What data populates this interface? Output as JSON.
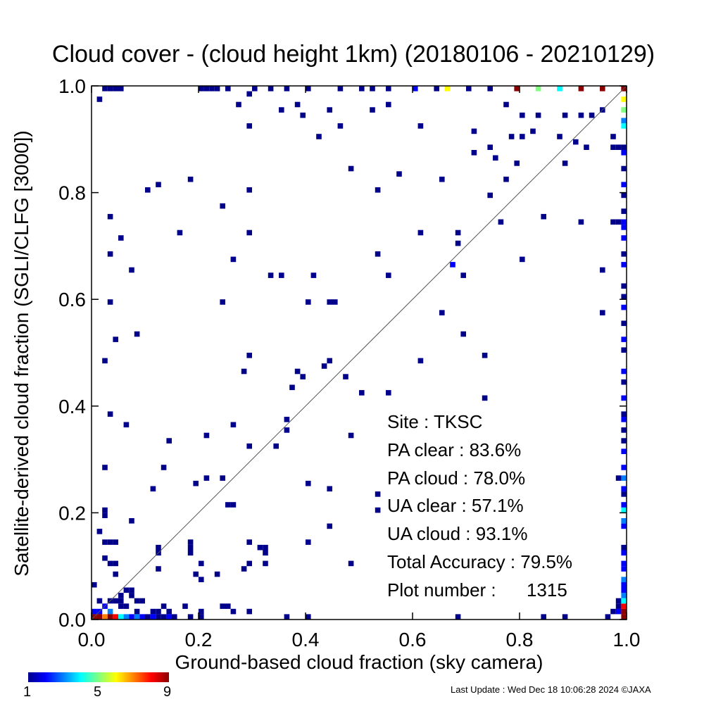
{
  "chart_data": {
    "type": "heatmap",
    "title": "Cloud cover - (cloud height 1km)  (20180106 - 20210129)",
    "xlabel": "Ground-based cloud fraction (sky camera)",
    "ylabel": "Satellite-derived cloud fraction (SGLI/CLFG [3000])",
    "xlim": [
      0.0,
      1.0
    ],
    "ylim": [
      0.0,
      1.0
    ],
    "xticks": [
      "0.0",
      "0.2",
      "0.4",
      "0.6",
      "0.8",
      "1.0"
    ],
    "yticks": [
      "0.0",
      "0.2",
      "0.4",
      "0.6",
      "0.8",
      "1.0"
    ],
    "grid": false,
    "reference_line": "y = x",
    "colorbar": {
      "min": 1,
      "max": 9,
      "ticks": [
        "1",
        "5",
        "9"
      ]
    },
    "points": [
      [
        0.01,
        0.97,
        1
      ],
      [
        0.02,
        1.0,
        1
      ],
      [
        0.03,
        1.0,
        1
      ],
      [
        0.04,
        1.0,
        1
      ],
      [
        0.05,
        1.0,
        1
      ],
      [
        0.2,
        1.0,
        1
      ],
      [
        0.21,
        1.0,
        1
      ],
      [
        0.22,
        1.0,
        1
      ],
      [
        0.23,
        1.0,
        1
      ],
      [
        0.25,
        1.0,
        1
      ],
      [
        0.3,
        1.0,
        1
      ],
      [
        0.33,
        1.0,
        1
      ],
      [
        0.36,
        1.0,
        1
      ],
      [
        0.4,
        1.0,
        1
      ],
      [
        0.46,
        1.0,
        1
      ],
      [
        0.5,
        1.0,
        1
      ],
      [
        0.52,
        1.0,
        1
      ],
      [
        0.55,
        1.0,
        1
      ],
      [
        0.6,
        1.0,
        2
      ],
      [
        0.64,
        1.0,
        1
      ],
      [
        0.66,
        1.0,
        6
      ],
      [
        0.7,
        1.0,
        1
      ],
      [
        0.74,
        1.0,
        1
      ],
      [
        0.79,
        1.0,
        9
      ],
      [
        0.83,
        1.0,
        5
      ],
      [
        0.87,
        1.0,
        4
      ],
      [
        0.91,
        1.0,
        9
      ],
      [
        0.95,
        1.0,
        9
      ],
      [
        0.27,
        0.96,
        1
      ],
      [
        0.29,
        0.98,
        1
      ],
      [
        0.35,
        0.95,
        1
      ],
      [
        0.38,
        0.96,
        1
      ],
      [
        0.44,
        0.95,
        1
      ],
      [
        0.52,
        0.95,
        1
      ],
      [
        0.55,
        0.96,
        1
      ],
      [
        0.61,
        0.92,
        1
      ],
      [
        0.71,
        0.91,
        1
      ],
      [
        0.77,
        0.96,
        1
      ],
      [
        0.8,
        0.94,
        1
      ],
      [
        0.83,
        0.94,
        1
      ],
      [
        0.88,
        0.94,
        1
      ],
      [
        0.91,
        0.94,
        1
      ],
      [
        0.93,
        0.94,
        1
      ],
      [
        0.95,
        0.95,
        1
      ],
      [
        0.29,
        0.92,
        1
      ],
      [
        0.39,
        0.94,
        1
      ],
      [
        0.42,
        0.9,
        1
      ],
      [
        0.46,
        0.92,
        1
      ],
      [
        0.78,
        0.9,
        1
      ],
      [
        0.8,
        0.9,
        1
      ],
      [
        0.82,
        0.91,
        1
      ],
      [
        0.87,
        0.9,
        1
      ],
      [
        0.9,
        0.89,
        1
      ],
      [
        0.92,
        0.88,
        1
      ],
      [
        0.71,
        0.87,
        1
      ],
      [
        0.74,
        0.88,
        1
      ],
      [
        0.75,
        0.86,
        1
      ],
      [
        0.79,
        0.85,
        1
      ],
      [
        0.88,
        0.85,
        1
      ],
      [
        0.48,
        0.84,
        1
      ],
      [
        0.57,
        0.83,
        1
      ],
      [
        0.65,
        0.82,
        1
      ],
      [
        0.77,
        0.82,
        1
      ],
      [
        0.1,
        0.8,
        1
      ],
      [
        0.12,
        0.81,
        1
      ],
      [
        0.18,
        0.82,
        1
      ],
      [
        0.29,
        0.8,
        1
      ],
      [
        0.53,
        0.8,
        1
      ],
      [
        0.74,
        0.79,
        1
      ],
      [
        0.24,
        0.77,
        1
      ],
      [
        0.03,
        0.75,
        1
      ],
      [
        0.76,
        0.74,
        1
      ],
      [
        0.84,
        0.75,
        1
      ],
      [
        0.91,
        0.74,
        1
      ],
      [
        0.05,
        0.71,
        1
      ],
      [
        0.16,
        0.72,
        1
      ],
      [
        0.29,
        0.72,
        1
      ],
      [
        0.61,
        0.72,
        1
      ],
      [
        0.68,
        0.72,
        1
      ],
      [
        0.68,
        0.7,
        1
      ],
      [
        0.8,
        0.67,
        1
      ],
      [
        0.03,
        0.68,
        1
      ],
      [
        0.26,
        0.67,
        1
      ],
      [
        0.53,
        0.68,
        1
      ],
      [
        0.67,
        0.66,
        2
      ],
      [
        0.07,
        0.65,
        1
      ],
      [
        0.33,
        0.64,
        1
      ],
      [
        0.35,
        0.64,
        1
      ],
      [
        0.41,
        0.64,
        1
      ],
      [
        0.55,
        0.64,
        1
      ],
      [
        0.69,
        0.64,
        1
      ],
      [
        0.95,
        0.65,
        1
      ],
      [
        0.03,
        0.59,
        1
      ],
      [
        0.24,
        0.59,
        1
      ],
      [
        0.4,
        0.59,
        1
      ],
      [
        0.44,
        0.59,
        1
      ],
      [
        0.45,
        0.59,
        1
      ],
      [
        0.65,
        0.57,
        1
      ],
      [
        0.95,
        0.57,
        1
      ],
      [
        0.08,
        0.53,
        1
      ],
      [
        0.69,
        0.53,
        1
      ],
      [
        0.04,
        0.52,
        1
      ],
      [
        0.29,
        0.49,
        1
      ],
      [
        0.73,
        0.49,
        1
      ],
      [
        0.02,
        0.48,
        1
      ],
      [
        0.61,
        0.48,
        1
      ],
      [
        0.28,
        0.46,
        1
      ],
      [
        0.38,
        0.46,
        1
      ],
      [
        0.43,
        0.47,
        1
      ],
      [
        0.44,
        0.48,
        1
      ],
      [
        0.39,
        0.45,
        1
      ],
      [
        0.47,
        0.45,
        1
      ],
      [
        0.37,
        0.43,
        1
      ],
      [
        0.5,
        0.42,
        1
      ],
      [
        0.55,
        0.42,
        1
      ],
      [
        0.73,
        0.41,
        1
      ],
      [
        0.03,
        0.38,
        1
      ],
      [
        0.06,
        0.36,
        1
      ],
      [
        0.26,
        0.36,
        1
      ],
      [
        0.36,
        0.37,
        1
      ],
      [
        0.36,
        0.35,
        1
      ],
      [
        0.48,
        0.34,
        1
      ],
      [
        0.21,
        0.34,
        1
      ],
      [
        0.14,
        0.33,
        1
      ],
      [
        0.29,
        0.32,
        1
      ],
      [
        0.34,
        0.32,
        1
      ],
      [
        0.02,
        0.28,
        1
      ],
      [
        0.13,
        0.28,
        1
      ],
      [
        0.19,
        0.25,
        1
      ],
      [
        0.21,
        0.26,
        1
      ],
      [
        0.24,
        0.26,
        1
      ],
      [
        0.4,
        0.25,
        1
      ],
      [
        0.11,
        0.24,
        1
      ],
      [
        0.44,
        0.24,
        1
      ],
      [
        0.53,
        0.23,
        1
      ],
      [
        0.25,
        0.21,
        1
      ],
      [
        0.26,
        0.21,
        1
      ],
      [
        0.53,
        0.2,
        1
      ],
      [
        0.02,
        0.2,
        1
      ],
      [
        0.02,
        0.19,
        1
      ],
      [
        0.07,
        0.18,
        1
      ],
      [
        0.44,
        0.17,
        1
      ],
      [
        0.01,
        0.16,
        1
      ],
      [
        0.02,
        0.14,
        1
      ],
      [
        0.03,
        0.14,
        1
      ],
      [
        0.04,
        0.14,
        1
      ],
      [
        0.18,
        0.14,
        1
      ],
      [
        0.29,
        0.14,
        1
      ],
      [
        0.4,
        0.14,
        1
      ],
      [
        0.12,
        0.13,
        1
      ],
      [
        0.18,
        0.13,
        1
      ],
      [
        0.31,
        0.13,
        1
      ],
      [
        0.32,
        0.13,
        1
      ],
      [
        0.32,
        0.12,
        1
      ],
      [
        0.02,
        0.11,
        1
      ],
      [
        0.12,
        0.12,
        1
      ],
      [
        0.18,
        0.12,
        1
      ],
      [
        0.03,
        0.1,
        1
      ],
      [
        0.04,
        0.1,
        1
      ],
      [
        0.2,
        0.1,
        1
      ],
      [
        0.29,
        0.1,
        1
      ],
      [
        0.32,
        0.1,
        1
      ],
      [
        0.48,
        0.1,
        1
      ],
      [
        0.12,
        0.09,
        1
      ],
      [
        0.28,
        0.09,
        1
      ],
      [
        0.19,
        0.08,
        1
      ],
      [
        0.23,
        0.08,
        1
      ],
      [
        0.04,
        0.08,
        1
      ],
      [
        0.2,
        0.07,
        1
      ],
      [
        0.0,
        0.06,
        1
      ],
      [
        0.06,
        0.05,
        1
      ],
      [
        0.07,
        0.05,
        1
      ],
      [
        0.05,
        0.04,
        1
      ],
      [
        0.07,
        0.04,
        1
      ],
      [
        0.01,
        0.03,
        1
      ],
      [
        0.03,
        0.03,
        1
      ],
      [
        0.04,
        0.03,
        1
      ],
      [
        0.05,
        0.03,
        1
      ],
      [
        0.08,
        0.03,
        1
      ],
      [
        0.09,
        0.03,
        1
      ],
      [
        0.02,
        0.02,
        2
      ],
      [
        0.05,
        0.02,
        1
      ],
      [
        0.06,
        0.02,
        1
      ],
      [
        0.13,
        0.02,
        1
      ],
      [
        0.17,
        0.02,
        1
      ],
      [
        0.24,
        0.02,
        1
      ],
      [
        0.25,
        0.02,
        1
      ],
      [
        0.0,
        0.01,
        2
      ],
      [
        0.01,
        0.01,
        2
      ],
      [
        0.03,
        0.01,
        3
      ],
      [
        0.08,
        0.01,
        1
      ],
      [
        0.11,
        0.01,
        1
      ],
      [
        0.12,
        0.01,
        1
      ],
      [
        0.14,
        0.01,
        1
      ],
      [
        0.2,
        0.01,
        1
      ],
      [
        0.26,
        0.01,
        1
      ],
      [
        0.29,
        0.01,
        1
      ],
      [
        0.0,
        0.0,
        9
      ],
      [
        0.01,
        0.0,
        9
      ],
      [
        0.02,
        0.0,
        7
      ],
      [
        0.03,
        0.0,
        9
      ],
      [
        0.04,
        0.0,
        8
      ],
      [
        0.05,
        0.0,
        4
      ],
      [
        0.06,
        0.0,
        3
      ],
      [
        0.07,
        0.0,
        2
      ],
      [
        0.08,
        0.0,
        3
      ],
      [
        0.09,
        0.0,
        2
      ],
      [
        0.1,
        0.0,
        1
      ],
      [
        0.11,
        0.0,
        2
      ],
      [
        0.12,
        0.0,
        1
      ],
      [
        0.13,
        0.0,
        1
      ],
      [
        0.14,
        0.0,
        2
      ],
      [
        0.15,
        0.0,
        1
      ],
      [
        0.18,
        0.0,
        1
      ],
      [
        0.2,
        0.0,
        1
      ],
      [
        0.36,
        0.0,
        1
      ],
      [
        0.4,
        0.0,
        1
      ],
      [
        0.68,
        0.0,
        1
      ],
      [
        0.84,
        0.0,
        1
      ],
      [
        0.88,
        0.0,
        1
      ],
      [
        0.96,
        0.0,
        1
      ],
      [
        0.97,
        0.01,
        1
      ],
      [
        0.98,
        0.01,
        2
      ],
      [
        0.98,
        0.02,
        1
      ],
      [
        0.99,
        0.0,
        9
      ],
      [
        0.99,
        0.01,
        9
      ],
      [
        0.99,
        0.02,
        8
      ],
      [
        0.98,
        0.03,
        1
      ],
      [
        0.99,
        0.03,
        4
      ],
      [
        0.99,
        0.04,
        3
      ],
      [
        0.99,
        0.05,
        2
      ],
      [
        0.99,
        0.06,
        2
      ],
      [
        0.99,
        0.07,
        3
      ],
      [
        0.99,
        0.09,
        2
      ],
      [
        0.99,
        0.1,
        2
      ],
      [
        0.99,
        0.12,
        2
      ],
      [
        0.99,
        0.13,
        1
      ],
      [
        0.99,
        0.17,
        2
      ],
      [
        0.99,
        0.18,
        3
      ],
      [
        0.99,
        0.2,
        4
      ],
      [
        0.99,
        0.21,
        2
      ],
      [
        0.99,
        0.23,
        1
      ],
      [
        0.99,
        0.24,
        2
      ],
      [
        0.99,
        0.26,
        3
      ],
      [
        0.99,
        0.28,
        2
      ],
      [
        0.99,
        0.31,
        2
      ],
      [
        0.99,
        0.33,
        1
      ],
      [
        0.99,
        0.35,
        1
      ],
      [
        0.99,
        0.37,
        2
      ],
      [
        0.99,
        0.38,
        1
      ],
      [
        0.99,
        0.41,
        2
      ],
      [
        0.99,
        0.44,
        1
      ],
      [
        0.99,
        0.46,
        2
      ],
      [
        0.99,
        0.5,
        1
      ],
      [
        0.99,
        0.52,
        2
      ],
      [
        0.99,
        0.55,
        1
      ],
      [
        0.99,
        0.58,
        2
      ],
      [
        0.99,
        0.6,
        1
      ],
      [
        0.99,
        0.62,
        1
      ],
      [
        0.99,
        0.66,
        2
      ],
      [
        0.99,
        0.68,
        1
      ],
      [
        0.99,
        0.71,
        2
      ],
      [
        0.99,
        0.73,
        2
      ],
      [
        0.99,
        0.74,
        2
      ],
      [
        0.99,
        0.76,
        1
      ],
      [
        0.99,
        0.79,
        1
      ],
      [
        0.99,
        0.81,
        2
      ],
      [
        0.99,
        0.84,
        1
      ],
      [
        0.99,
        0.87,
        2
      ],
      [
        0.99,
        0.88,
        1
      ],
      [
        0.99,
        0.92,
        4
      ],
      [
        0.99,
        0.93,
        3
      ],
      [
        0.99,
        0.95,
        5
      ],
      [
        0.99,
        0.97,
        6
      ],
      [
        0.99,
        0.99,
        9
      ],
      [
        0.99,
        1.0,
        9
      ],
      [
        0.98,
        0.26,
        1
      ],
      [
        0.97,
        0.9,
        1
      ],
      [
        0.98,
        0.88,
        1
      ],
      [
        0.97,
        0.88,
        1
      ],
      [
        0.97,
        0.74,
        1
      ],
      [
        0.98,
        0.74,
        1
      ]
    ]
  },
  "stats": {
    "site": "Site : TKSC",
    "pa_clear": "PA clear :  83.6%",
    "pa_cloud": "PA cloud :  78.0%",
    "ua_clear": "UA clear :  57.1%",
    "ua_cloud": "UA cloud :  93.1%",
    "total_accuracy": "Total Accuracy :  79.5%",
    "plot_number": "Plot number :      1315"
  },
  "footer": "Last Update : Wed Dec 18 10:06:28 2024  ©JAXA"
}
